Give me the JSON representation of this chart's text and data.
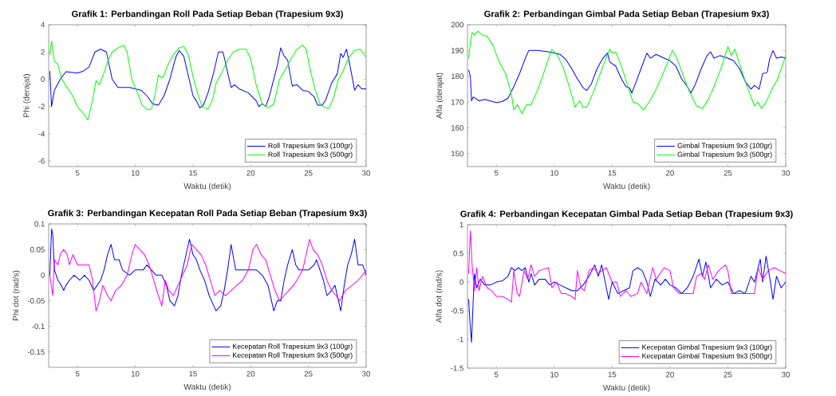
{
  "chart_data": [
    {
      "type": "line",
      "title": "Grafik 1: Perbandingan Roll Pada Setiap Beban (Trapesium 9x3)",
      "xlabel": "Waktu (detik)",
      "ylabel": "Phi (derajat)",
      "xlim": [
        2.5,
        30
      ],
      "ylim": [
        -6.4,
        4
      ],
      "xticks": [
        5,
        10,
        15,
        20,
        25,
        30
      ],
      "yticks": [
        -6,
        -4,
        -2,
        0,
        2,
        4
      ],
      "legend": "bottom right",
      "marker": "none",
      "line_style": "solid",
      "series": [
        {
          "name": "Roll Trapesium 9x3 (100gr)",
          "color": "#0000ff",
          "x": [
            2.6,
            2.75,
            3.0,
            3.5,
            4.0,
            5.0,
            5.5,
            6.0,
            6.5,
            7.0,
            7.5,
            8.0,
            8.5,
            9.5,
            10.5,
            11.0,
            11.5,
            12.0,
            12.5,
            13.0,
            13.5,
            13.8,
            14.2,
            14.5,
            15.0,
            15.3,
            15.6,
            15.9,
            16.3,
            16.8,
            17.2,
            17.6,
            18.0,
            18.3,
            18.6,
            19.0,
            19.8,
            20.5,
            20.7,
            21.0,
            21.3,
            21.6,
            22.0,
            22.3,
            22.6,
            22.9,
            23.2,
            23.6,
            24.0,
            24.5,
            25.0,
            25.5,
            25.8,
            26.2,
            26.5,
            27.0,
            27.5,
            27.8,
            28.0,
            28.3,
            28.6,
            29.0,
            29.3,
            29.6,
            30
          ],
          "values": [
            0.6,
            -2.0,
            -0.8,
            0.0,
            0.55,
            0.45,
            0.6,
            0.9,
            2.0,
            2.2,
            2.0,
            0,
            -0.6,
            -0.6,
            -0.8,
            -1.2,
            -1.8,
            -1.9,
            -1.2,
            0,
            1.6,
            2.1,
            1.7,
            0.6,
            -1.2,
            -1.6,
            -2.1,
            -1.9,
            -1.0,
            0.5,
            2.0,
            2.0,
            0.5,
            -0.6,
            -0.4,
            -0.7,
            -1.0,
            -1.6,
            -2.0,
            -1.8,
            -2.0,
            -1.3,
            0.0,
            1.0,
            2.3,
            1.7,
            1.4,
            -0.5,
            -0.4,
            -0.8,
            -0.9,
            -1.3,
            -1.9,
            -1.9,
            -1.5,
            -0.3,
            0.4,
            1.9,
            1.6,
            2.2,
            1.0,
            -0.8,
            -0.4,
            -0.7,
            -0.7
          ]
        },
        {
          "name": "Roll Trapesium 9x3 (500gr)",
          "color": "#00ff00",
          "x": [
            2.6,
            2.75,
            3.0,
            3.3,
            3.6,
            4.0,
            4.5,
            5.0,
            5.5,
            5.9,
            6.3,
            6.6,
            6.9,
            7.3,
            7.6,
            8.0,
            8.5,
            9.0,
            9.3,
            9.7,
            10.2,
            10.6,
            11.0,
            11.4,
            11.7,
            12.0,
            12.4,
            12.8,
            13.3,
            13.8,
            14.2,
            14.6,
            15.0,
            15.5,
            15.8,
            16.3,
            16.7,
            17.0,
            17.5,
            18.0,
            18.5,
            19.0,
            19.6,
            20.0,
            20.5,
            21.0,
            21.5,
            22.0,
            22.5,
            23.0,
            23.5,
            24.0,
            24.5,
            24.8,
            25.2,
            25.6,
            26.0,
            26.5,
            26.8,
            27.2,
            27.6,
            28.0,
            28.5,
            29.0,
            29.5,
            30
          ],
          "values": [
            1.8,
            2.8,
            1.3,
            1.1,
            0.1,
            -0.5,
            -1.1,
            -2.0,
            -2.5,
            -3.0,
            -1.5,
            -0.1,
            -0.4,
            0.5,
            1.3,
            2.0,
            2.3,
            2.5,
            2.0,
            0.0,
            -1.0,
            -1.9,
            -2.2,
            -2.2,
            -1.2,
            0.3,
            0.1,
            1.0,
            1.8,
            2.3,
            2.4,
            1.8,
            0.2,
            -1.3,
            -2.0,
            -2.2,
            -1.5,
            -0.3,
            0.5,
            1.4,
            2.0,
            2.2,
            2.2,
            1.5,
            -0.5,
            -1.8,
            -2.1,
            -1.8,
            0.0,
            0.7,
            1.5,
            2.2,
            2.5,
            2.2,
            0.5,
            -0.8,
            -1.8,
            -2.1,
            -2.1,
            -1.3,
            0.0,
            0.6,
            1.6,
            2.1,
            2.2,
            1.6
          ]
        }
      ]
    },
    {
      "type": "line",
      "title": "Grafik 2: Perbandingan Gimbal Pada Setiap Beban (Trapesium 9x3)",
      "xlabel": "Waktu (detik)",
      "ylabel": "Alfa (derajat)",
      "xlim": [
        2.5,
        30
      ],
      "ylim": [
        145,
        200
      ],
      "xticks": [
        5,
        10,
        15,
        20,
        25,
        30
      ],
      "yticks": [
        150,
        160,
        170,
        180,
        190,
        200
      ],
      "legend": "bottom right",
      "marker": "none",
      "line_style": "solid",
      "series": [
        {
          "name": "Gimbal Trapesium 9x3 (100gr)",
          "color": "#0000ff",
          "x": [
            2.6,
            2.75,
            2.85,
            3.0,
            3.5,
            4.0,
            5.0,
            5.5,
            6.0,
            6.5,
            7.0,
            7.5,
            7.8,
            8.5,
            9.5,
            10.5,
            11.0,
            11.5,
            12.0,
            12.5,
            12.8,
            13.2,
            13.7,
            14.2,
            14.6,
            14.8,
            15.3,
            15.8,
            16.2,
            16.5,
            16.7,
            17.0,
            17.5,
            18.0,
            18.3,
            18.8,
            19.5,
            20.0,
            20.5,
            21.0,
            21.5,
            21.8,
            22.2,
            22.7,
            23.2,
            23.5,
            23.8,
            24.3,
            25.0,
            25.5,
            26.0,
            26.5,
            27.0,
            27.3,
            27.7,
            28.0,
            28.4,
            28.6,
            28.9,
            29.2,
            29.6,
            30
          ],
          "values": [
            182.5,
            180,
            170.5,
            172,
            170.5,
            171,
            169.8,
            170.2,
            171.5,
            176,
            181,
            187,
            190,
            190,
            189.5,
            188.5,
            186.5,
            183,
            179,
            175.5,
            174.5,
            177,
            183,
            187,
            189,
            185.5,
            184,
            179,
            176,
            175.5,
            173.5,
            177,
            183,
            189,
            187,
            188.5,
            187,
            186,
            184,
            179,
            176,
            173.5,
            177,
            183,
            188,
            189.5,
            187,
            188,
            187,
            186,
            183,
            178,
            175,
            176.5,
            175,
            181,
            181.5,
            186.5,
            190,
            187,
            187.5,
            187
          ]
        },
        {
          "name": "Gimbal Trapesium 9x3 (500gr)",
          "color": "#00ff00",
          "x": [
            2.6,
            2.75,
            2.9,
            3.1,
            3.4,
            3.8,
            4.2,
            4.7,
            5.2,
            5.8,
            6.3,
            6.5,
            6.8,
            7.0,
            7.2,
            7.6,
            8.0,
            8.5,
            9.0,
            9.5,
            9.8,
            10.3,
            10.8,
            11.3,
            11.8,
            12.2,
            12.5,
            12.8,
            13.3,
            13.8,
            14.3,
            14.8,
            15.0,
            15.3,
            15.8,
            16.3,
            16.8,
            17.2,
            17.7,
            18.2,
            18.8,
            19.4,
            20.2,
            20.6,
            21.0,
            21.5,
            22.0,
            22.3,
            22.8,
            23.3,
            23.8,
            24.4,
            25.0,
            25.3,
            25.6,
            26.0,
            26.5,
            27.0,
            27.3,
            27.6,
            27.9,
            28.3,
            28.8,
            29.3,
            30
          ],
          "values": [
            187,
            193,
            197,
            196,
            197.5,
            196,
            195.5,
            192,
            186,
            181,
            173,
            167,
            169,
            167.5,
            165.5,
            169,
            169,
            174,
            180,
            187,
            190.5,
            188,
            183,
            176,
            168,
            170.5,
            168,
            168,
            173,
            179,
            185,
            190.5,
            189,
            189.5,
            184,
            177,
            170,
            169.5,
            167,
            170,
            175,
            181,
            190,
            187,
            182,
            176,
            171,
            168.5,
            167.5,
            171,
            176,
            183,
            191.5,
            188,
            190.5,
            185,
            178,
            172,
            168.5,
            170,
            167.5,
            170,
            175,
            179,
            188
          ]
        }
      ]
    },
    {
      "type": "line",
      "title": "Grafik 3: Perbandingan Kecepatan Roll Pada Setiap Beban (Trapesium 9x3)",
      "xlabel": "Waktu (detik)",
      "ylabel": "Phi dot (rad/s)",
      "xlim": [
        2.5,
        30
      ],
      "ylim": [
        -0.18,
        0.1
      ],
      "xticks": [
        5,
        10,
        15,
        20,
        25,
        30
      ],
      "yticks": [
        -0.15,
        -0.1,
        -0.05,
        0,
        0.05,
        0.1
      ],
      "legend": "bottom right",
      "marker": "none",
      "line_style": "solid",
      "series": [
        {
          "name": "Kecepatan Roll Trapesium 9x3 (100gr)",
          "color": "#0000ff",
          "x": [
            2.6,
            2.75,
            2.85,
            3.0,
            3.3,
            3.6,
            3.8,
            4.0,
            4.3,
            4.7,
            5.2,
            5.6,
            6.0,
            6.4,
            6.7,
            7.0,
            7.3,
            7.6,
            7.9,
            8.2,
            8.6,
            8.9,
            9.5,
            10.0,
            10.7,
            11.0,
            11.4,
            11.8,
            12.3,
            12.7,
            13.0,
            13.4,
            13.7,
            14.0,
            14.3,
            14.7,
            15.0,
            15.3,
            15.6,
            16.0,
            16.4,
            16.8,
            17.0,
            17.4,
            17.7,
            18.0,
            18.3,
            18.7,
            19.5,
            20.5,
            21.0,
            21.5,
            21.8,
            22.0,
            22.3,
            22.6,
            22.9,
            23.2,
            23.6,
            23.9,
            24.2,
            25.0,
            25.5,
            25.7,
            26.0,
            26.3,
            26.6,
            27.0,
            27.3,
            27.6,
            27.8,
            28.1,
            28.4,
            28.7,
            29.0,
            29.3,
            29.7,
            30
          ],
          "values": [
            0,
            0.09,
            0.08,
            0.01,
            -0.01,
            -0.02,
            -0.03,
            -0.02,
            -0.01,
            0.0,
            -0.01,
            0.0,
            -0.01,
            -0.03,
            -0.02,
            -0.01,
            0.01,
            0.04,
            0.06,
            0.03,
            0.03,
            0.01,
            0.0,
            0.01,
            0.01,
            0.02,
            0.01,
            0.0,
            0.0,
            -0.02,
            -0.05,
            -0.06,
            -0.04,
            0.0,
            0.03,
            0.07,
            0.04,
            0.03,
            0.01,
            -0.01,
            -0.04,
            -0.06,
            -0.07,
            -0.06,
            -0.03,
            0.01,
            0.06,
            0.01,
            0.01,
            0.01,
            0.0,
            -0.02,
            -0.05,
            -0.07,
            -0.05,
            -0.05,
            -0.01,
            0.02,
            0.05,
            0.02,
            0.01,
            0.01,
            0.02,
            0.03,
            0.01,
            -0.01,
            -0.04,
            -0.03,
            -0.02,
            -0.05,
            -0.07,
            -0.02,
            0.02,
            0.04,
            0.07,
            0.02,
            0.02,
            0.0
          ]
        },
        {
          "name": "Kecepatan Roll Trapesium 9x3 (500gr)",
          "color": "#ff00ff",
          "x": [
            2.6,
            2.85,
            3.0,
            3.3,
            3.5,
            3.8,
            4.1,
            4.3,
            4.6,
            5.0,
            5.5,
            6.0,
            6.3,
            6.6,
            6.9,
            7.2,
            7.6,
            7.9,
            8.3,
            8.8,
            9.3,
            9.7,
            10.0,
            10.4,
            10.8,
            11.2,
            11.6,
            12.0,
            12.3,
            12.6,
            12.9,
            13.3,
            13.7,
            14.1,
            14.5,
            14.9,
            15.3,
            15.7,
            16.1,
            16.5,
            16.9,
            17.3,
            17.8,
            18.3,
            18.8,
            19.3,
            19.8,
            20.2,
            20.5,
            20.9,
            21.3,
            21.7,
            22.1,
            22.5,
            22.9,
            23.3,
            23.7,
            24.0,
            24.5,
            24.9,
            25.1,
            25.4,
            25.8,
            26.2,
            26.6,
            27.0,
            27.4,
            27.7,
            28.2,
            28.8,
            29.3,
            29.7,
            30
          ],
          "values": [
            0.0,
            -0.04,
            0.03,
            0.02,
            0.04,
            0.05,
            0.04,
            0.02,
            0.04,
            0.02,
            0.02,
            0.02,
            -0.01,
            -0.07,
            -0.05,
            -0.02,
            -0.04,
            -0.05,
            -0.03,
            -0.02,
            0.0,
            0.04,
            0.06,
            0.05,
            0.04,
            0.02,
            -0.01,
            -0.04,
            -0.06,
            -0.01,
            -0.03,
            -0.04,
            -0.02,
            0.0,
            0.02,
            0.06,
            0.05,
            0.04,
            0.02,
            -0.01,
            -0.04,
            -0.03,
            -0.04,
            -0.03,
            -0.02,
            -0.01,
            0.01,
            0.05,
            0.06,
            0.04,
            0.03,
            0.0,
            -0.03,
            -0.05,
            -0.04,
            -0.03,
            -0.02,
            -0.01,
            0.01,
            0.05,
            0.07,
            0.05,
            0.04,
            0.02,
            -0.01,
            -0.03,
            -0.04,
            -0.05,
            -0.03,
            -0.02,
            -0.01,
            0.0,
            0.01
          ]
        }
      ]
    },
    {
      "type": "line",
      "title": "Grafik 4: Perbandingan Kecepatan Gimbal Pada Setiap Beban (Trapesium 9x3)",
      "xlabel": "Waktu (detik)",
      "ylabel": "Alfa dot (rad/s)",
      "xlim": [
        2.5,
        30
      ],
      "ylim": [
        -1.5,
        1
      ],
      "xticks": [
        5,
        10,
        15,
        20,
        25,
        30
      ],
      "yticks": [
        -1.5,
        -1,
        -0.5,
        0,
        0.5,
        1
      ],
      "legend": "bottom right",
      "marker": "none",
      "line_style": "solid",
      "series": [
        {
          "name": "Kecepatan Gimbal Trapesium 9x3 (100gr)",
          "color": "#0000ff",
          "x": [
            2.6,
            2.75,
            2.85,
            3.0,
            3.1,
            3.3,
            3.6,
            4.0,
            4.5,
            5.0,
            5.5,
            6.0,
            6.3,
            6.6,
            6.9,
            7.2,
            7.5,
            7.8,
            8.0,
            8.3,
            8.7,
            9.2,
            9.6,
            10.0,
            10.5,
            11.0,
            11.5,
            12.0,
            12.5,
            13.0,
            13.5,
            13.8,
            14.1,
            14.4,
            14.7,
            15.0,
            15.5,
            16.0,
            16.5,
            16.8,
            17.2,
            17.6,
            18.0,
            18.3,
            18.7,
            19.2,
            19.6,
            20.0,
            20.5,
            21.0,
            21.5,
            22.0,
            22.5,
            22.8,
            23.1,
            23.5,
            24.0,
            24.5,
            25.0,
            25.5,
            26.0,
            26.5,
            27.0,
            27.3,
            27.8,
            28.0,
            28.3,
            28.6,
            28.9,
            29.2,
            29.6,
            30
          ],
          "values": [
            -0.3,
            -0.8,
            -1.05,
            -0.3,
            0.15,
            -0.1,
            0.05,
            -0.05,
            -0.05,
            0.0,
            0.02,
            0.1,
            0.25,
            0.2,
            0.25,
            0.2,
            0.25,
            0.0,
            0.15,
            -0.05,
            0.05,
            0.05,
            -0.05,
            0.0,
            -0.05,
            -0.1,
            -0.15,
            -0.15,
            -0.05,
            0.1,
            0.3,
            0.1,
            0.3,
            0.0,
            -0.3,
            0.0,
            -0.2,
            -0.15,
            -0.1,
            0.2,
            0.25,
            0.2,
            0.0,
            -0.25,
            0.05,
            -0.05,
            0.05,
            -0.05,
            -0.1,
            -0.2,
            -0.1,
            0.1,
            0.4,
            0.1,
            0.35,
            -0.1,
            0.05,
            -0.05,
            0.0,
            -0.2,
            -0.15,
            -0.2,
            0.1,
            0.0,
            0.4,
            0.0,
            0.45,
            0.1,
            -0.3,
            0.1,
            -0.1,
            0.0
          ]
        },
        {
          "name": "Kecepatan Gimbal Trapesium 9x3 (500gr)",
          "color": "#ff00ff",
          "x": [
            2.6,
            2.75,
            2.9,
            3.1,
            3.3,
            3.5,
            3.8,
            4.2,
            4.6,
            5.0,
            5.5,
            6.0,
            6.3,
            6.5,
            6.8,
            7.0,
            7.4,
            7.7,
            8.0,
            8.3,
            8.7,
            9.5,
            9.8,
            10.2,
            10.6,
            11.0,
            11.5,
            11.8,
            12.0,
            12.3,
            12.6,
            13.0,
            13.4,
            13.8,
            14.5,
            15.0,
            15.4,
            15.7,
            16.2,
            16.6,
            17.2,
            17.5,
            18.0,
            18.5,
            18.8,
            19.5,
            20.0,
            20.3,
            20.8,
            21.5,
            22.0,
            22.3,
            22.7,
            23.0,
            23.3,
            23.7,
            24.2,
            24.8,
            25.0,
            25.3,
            25.8,
            26.2,
            26.8,
            27.3,
            27.6,
            28.0,
            28.5,
            29.0,
            29.5,
            30
          ],
          "values": [
            0.15,
            0.9,
            0.3,
            -0.15,
            0.25,
            -0.15,
            0.1,
            -0.1,
            -0.15,
            -0.25,
            -0.25,
            -0.3,
            -0.35,
            0.2,
            -0.2,
            -0.25,
            0.2,
            0.05,
            0.3,
            0.1,
            0.2,
            0.25,
            -0.1,
            0.0,
            -0.2,
            -0.2,
            -0.25,
            -0.3,
            0.2,
            -0.1,
            -0.15,
            0.2,
            0.25,
            0.15,
            0.25,
            0.0,
            0.0,
            -0.25,
            -0.15,
            -0.25,
            -0.2,
            0.0,
            -0.2,
            0.25,
            0.05,
            0.25,
            0.2,
            -0.1,
            -0.2,
            -0.2,
            -0.2,
            0.1,
            0.15,
            0.05,
            0.3,
            0.05,
            0.2,
            0.3,
            0.2,
            -0.2,
            -0.2,
            -0.2,
            -0.2,
            -0.2,
            0.25,
            0.05,
            0.2,
            0.25,
            0.2,
            0.15
          ]
        }
      ]
    }
  ]
}
